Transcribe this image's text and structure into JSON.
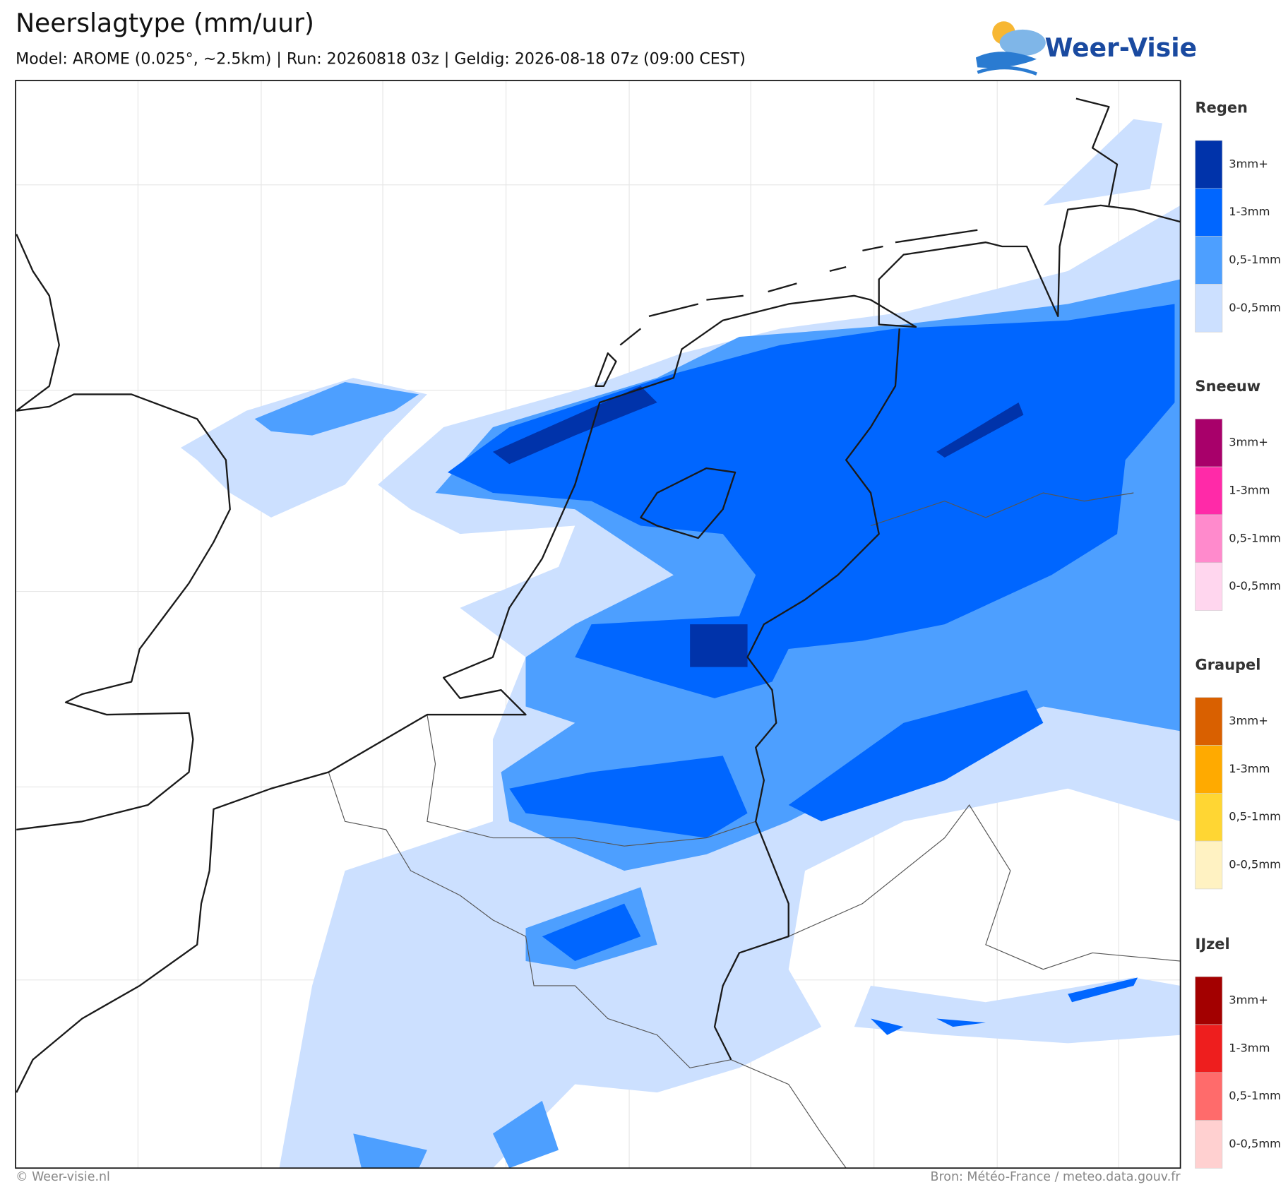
{
  "header": {
    "title": "Neerslagtype (mm/uur)",
    "subtitle": "Model: AROME (0.025°, ~2.5km)  |  Run: 20260818 03z  |  Geldig: 2026-08-18 07z (09:00 CEST)"
  },
  "logo": {
    "text": "Weer-Visie"
  },
  "legend": {
    "groups": [
      {
        "title": "Regen",
        "items": [
          {
            "label": "3mm+",
            "color": "#0033aa"
          },
          {
            "label": "1-3mm",
            "color": "#0066ff"
          },
          {
            "label": "0,5-1mm",
            "color": "#4d9fff"
          },
          {
            "label": "0-0,5mm",
            "color": "#cce0ff"
          }
        ]
      },
      {
        "title": "Sneeuw",
        "items": [
          {
            "label": "3mm+",
            "color": "#a8006a"
          },
          {
            "label": "1-3mm",
            "color": "#ff2aa8"
          },
          {
            "label": "0,5-1mm",
            "color": "#ff8acc"
          },
          {
            "label": "0-0,5mm",
            "color": "#ffd6ee"
          }
        ]
      },
      {
        "title": "Graupel",
        "items": [
          {
            "label": "3mm+",
            "color": "#d96000"
          },
          {
            "label": "1-3mm",
            "color": "#ffaa00"
          },
          {
            "label": "0,5-1mm",
            "color": "#ffd633"
          },
          {
            "label": "0-0,5mm",
            "color": "#fff2c2"
          }
        ]
      },
      {
        "title": "IJzel",
        "items": [
          {
            "label": "3mm+",
            "color": "#a30000"
          },
          {
            "label": "1-3mm",
            "color": "#ee1e1e"
          },
          {
            "label": "0,5-1mm",
            "color": "#ff6b6b"
          },
          {
            "label": "0-0,5mm",
            "color": "#ffd0d0"
          }
        ]
      }
    ]
  },
  "footer": {
    "left": "© Weer-visie.nl",
    "right": "Bron: Météo-France / meteo.data.gouv.fr"
  }
}
